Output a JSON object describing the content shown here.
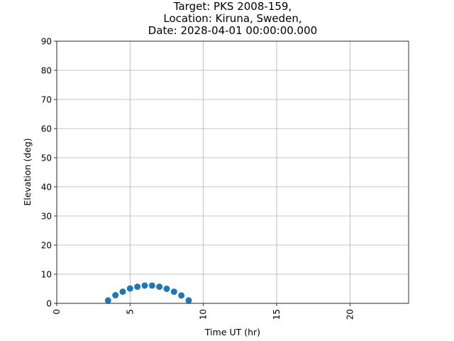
{
  "chart_data": {
    "type": "scatter",
    "title_lines": [
      "Target: PKS 2008-159,",
      "Location: Kiruna, Sweden,",
      "Date: 2028-04-01 00:00:00.000"
    ],
    "xlabel": "Time UT (hr)",
    "ylabel": "Elevation (deg)",
    "xlim": [
      0,
      24
    ],
    "ylim": [
      0,
      90
    ],
    "xticks": [
      0,
      5,
      10,
      15,
      20
    ],
    "yticks": [
      0,
      10,
      20,
      30,
      40,
      50,
      60,
      70,
      80,
      90
    ],
    "grid": true,
    "marker_color": "#1f77b4",
    "series": [
      {
        "x": [
          3.5,
          4.0,
          4.5,
          5.0,
          5.5,
          6.0,
          6.5,
          7.0,
          7.5,
          8.0,
          8.5,
          9.0
        ],
        "y": [
          1.0,
          2.8,
          4.0,
          5.1,
          5.7,
          6.1,
          6.1,
          5.7,
          5.0,
          4.0,
          2.7,
          1.0
        ]
      }
    ]
  }
}
